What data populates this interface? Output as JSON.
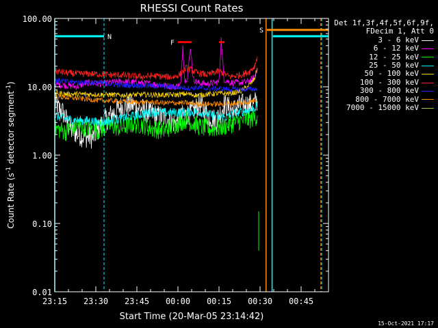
{
  "chart_data": {
    "type": "line",
    "title": "RHESSI Count Rates",
    "xlabel": "Start Time (20-Mar-05 23:14:42)",
    "ylabel_parts": [
      "Count Rate (s",
      "-1",
      " detector segment",
      "-1",
      ")"
    ],
    "yscale": "log",
    "ylim": [
      0.01,
      100
    ],
    "y_ticks": [
      {
        "value": 100,
        "label": "100.00"
      },
      {
        "value": 10,
        "label": "10.00"
      },
      {
        "value": 1,
        "label": "1.00"
      },
      {
        "value": 0.1,
        "label": "0.10"
      },
      {
        "value": 0.01,
        "label": "0.01"
      }
    ],
    "xlim_minutes": [
      0,
      100
    ],
    "x_ticks": [
      {
        "minute": 0,
        "label": "23:15"
      },
      {
        "minute": 15,
        "label": "23:30"
      },
      {
        "minute": 30,
        "label": "23:45"
      },
      {
        "minute": 45,
        "label": "00:00"
      },
      {
        "minute": 60,
        "label": "00:15"
      },
      {
        "minute": 75,
        "label": "00:30"
      },
      {
        "minute": 90,
        "label": "00:45"
      }
    ],
    "series": [
      {
        "name": "3 - 6 keV",
        "color": "#ffffff",
        "points": [
          [
            0,
            5.5
          ],
          [
            3,
            4.2
          ],
          [
            6,
            2.3
          ],
          [
            10,
            1.9
          ],
          [
            14,
            1.8
          ],
          [
            18,
            3.2
          ],
          [
            24,
            5
          ],
          [
            28,
            5.5
          ],
          [
            33,
            4.5
          ],
          [
            37,
            3.8
          ],
          [
            41,
            3.5
          ],
          [
            44,
            2.9
          ],
          [
            47,
            3.8
          ],
          [
            50,
            4.2
          ],
          [
            53,
            5.5
          ],
          [
            56,
            3.8
          ],
          [
            59,
            3.2
          ],
          [
            62,
            5.5
          ],
          [
            65,
            4.5
          ],
          [
            67,
            5.2
          ],
          [
            69,
            5.5
          ],
          [
            72,
            5.5
          ],
          [
            74,
            6.2
          ]
        ]
      },
      {
        "name": "6 - 12 keV",
        "color": "#ff00ff",
        "points": [
          [
            0,
            11
          ],
          [
            4,
            10.5
          ],
          [
            8,
            10
          ],
          [
            12,
            11.5
          ],
          [
            16,
            11
          ],
          [
            20,
            11.5
          ],
          [
            24,
            12
          ],
          [
            30,
            11.5
          ],
          [
            36,
            11
          ],
          [
            40,
            10.5
          ],
          [
            44,
            10
          ],
          [
            46,
            10.8
          ],
          [
            46.8,
            40
          ],
          [
            47.5,
            12
          ],
          [
            48.5,
            14
          ],
          [
            49.6,
            38
          ],
          [
            50.6,
            13
          ],
          [
            52,
            11.5
          ],
          [
            56,
            11
          ],
          [
            60,
            11.8
          ],
          [
            60.8,
            50
          ],
          [
            61.8,
            13
          ],
          [
            64,
            11.5
          ],
          [
            68,
            11.5
          ],
          [
            71,
            12
          ],
          [
            73,
            14
          ],
          [
            74,
            18
          ]
        ]
      },
      {
        "name": "12 - 25 keV",
        "color": "#00ff00",
        "points": [
          [
            0,
            2.5
          ],
          [
            4,
            2.2
          ],
          [
            8,
            2.7
          ],
          [
            12,
            2.5
          ],
          [
            16,
            2.3
          ],
          [
            20,
            2.7
          ],
          [
            24,
            2.5
          ],
          [
            28,
            2.8
          ],
          [
            32,
            2.8
          ],
          [
            36,
            2.4
          ],
          [
            40,
            2.3
          ],
          [
            44,
            2.8
          ],
          [
            48,
            3.3
          ],
          [
            52,
            2.7
          ],
          [
            56,
            2.4
          ],
          [
            60,
            2.5
          ],
          [
            64,
            2.8
          ],
          [
            68,
            3.2
          ],
          [
            71,
            3.3
          ],
          [
            73,
            3.5
          ],
          [
            74,
            3.8
          ]
        ]
      },
      {
        "name": "25 - 50 keV",
        "color": "#00ffff",
        "points": [
          [
            0,
            3.8
          ],
          [
            4,
            3.4
          ],
          [
            8,
            3.2
          ],
          [
            12,
            3.2
          ],
          [
            16,
            3.0
          ],
          [
            20,
            3.2
          ],
          [
            24,
            3.4
          ],
          [
            28,
            3.7
          ],
          [
            32,
            4.0
          ],
          [
            36,
            4.3
          ],
          [
            40,
            4.2
          ],
          [
            44,
            4.2
          ],
          [
            48,
            4.3
          ],
          [
            52,
            4.3
          ],
          [
            56,
            4.0
          ],
          [
            60,
            3.6
          ],
          [
            63,
            3.6
          ],
          [
            66,
            4.1
          ],
          [
            69,
            4.4
          ],
          [
            72,
            4.6
          ],
          [
            74,
            5.2
          ]
        ]
      },
      {
        "name": "50 - 100 keV",
        "color": "#ffd700",
        "points": [
          [
            0,
            8.2
          ],
          [
            4,
            7.8
          ],
          [
            8,
            7.8
          ],
          [
            12,
            7.8
          ],
          [
            16,
            7.7
          ],
          [
            20,
            7.7
          ],
          [
            24,
            7.5
          ],
          [
            28,
            7.6
          ],
          [
            32,
            7.7
          ],
          [
            36,
            7.6
          ],
          [
            40,
            7.6
          ],
          [
            44,
            7.6
          ],
          [
            48,
            7.9
          ],
          [
            52,
            7.5
          ],
          [
            56,
            7.8
          ],
          [
            60,
            8.0
          ],
          [
            64,
            8.0
          ],
          [
            68,
            8.6
          ],
          [
            71,
            10.5
          ],
          [
            73,
            13
          ],
          [
            74,
            19
          ]
        ]
      },
      {
        "name": "100 - 300 keV",
        "color": "#ff2020",
        "points": [
          [
            0,
            17
          ],
          [
            4,
            16
          ],
          [
            8,
            15.5
          ],
          [
            12,
            15.5
          ],
          [
            16,
            15.3
          ],
          [
            20,
            15
          ],
          [
            24,
            14.8
          ],
          [
            28,
            14.4
          ],
          [
            32,
            14
          ],
          [
            36,
            14.5
          ],
          [
            40,
            14
          ],
          [
            44,
            14
          ],
          [
            46,
            15.5
          ],
          [
            48,
            19
          ],
          [
            52,
            16
          ],
          [
            56,
            15
          ],
          [
            60,
            17
          ],
          [
            64,
            14
          ],
          [
            68,
            15
          ],
          [
            71,
            16.5
          ],
          [
            73,
            20
          ],
          [
            74,
            28
          ]
        ]
      },
      {
        "name": "300 - 800 keV",
        "color": "#2020ff",
        "points": [
          [
            0,
            12.5
          ],
          [
            4,
            12
          ],
          [
            8,
            11.7
          ],
          [
            12,
            11.6
          ],
          [
            16,
            11.5
          ],
          [
            20,
            11
          ],
          [
            24,
            10.6
          ],
          [
            28,
            10.5
          ],
          [
            32,
            10.4
          ],
          [
            36,
            10.3
          ],
          [
            40,
            10.2
          ],
          [
            44,
            9.9
          ],
          [
            48,
            9.6
          ],
          [
            52,
            9.7
          ],
          [
            56,
            9.4
          ],
          [
            60,
            9.4
          ],
          [
            64,
            9.2
          ],
          [
            68,
            9.2
          ],
          [
            71,
            9.2
          ],
          [
            74,
            9.2
          ]
        ]
      },
      {
        "name": "800 - 7000 keV",
        "color": "#ff8c00",
        "points": [
          [
            0,
            7.2
          ],
          [
            4,
            7.0
          ],
          [
            8,
            6.8
          ],
          [
            12,
            6.6
          ],
          [
            16,
            6.3
          ],
          [
            20,
            6.3
          ],
          [
            24,
            6.1
          ],
          [
            28,
            6.0
          ],
          [
            32,
            5.9
          ],
          [
            36,
            5.9
          ],
          [
            40,
            5.8
          ],
          [
            44,
            5.8
          ],
          [
            48,
            5.8
          ],
          [
            52,
            5.6
          ],
          [
            56,
            5.6
          ],
          [
            60,
            5.6
          ],
          [
            64,
            5.6
          ],
          [
            68,
            5.8
          ],
          [
            71,
            6.0
          ],
          [
            74,
            6.5
          ]
        ]
      },
      {
        "name": "7000 - 15000 keV",
        "color": "#9acd32",
        "points": []
      }
    ],
    "legend_header": [
      "Det 1f,3f,4f,5f,6f,9f,",
      "FDecim 1, Att 0"
    ],
    "markers": [
      {
        "label": "N",
        "color": "#00ffff",
        "minute_start": 0,
        "minute_end": 18,
        "value": 55
      },
      {
        "label": "F",
        "color": "#ff0000",
        "minute_start": 45,
        "minute_end": 50,
        "value": 45
      },
      {
        "label": "",
        "color": "#ff0000",
        "minute_start": 60,
        "minute_end": 62,
        "value": 45
      },
      {
        "label": "S",
        "color": "#ff8c00",
        "minute_start": 77.5,
        "minute_end": 100,
        "value": 68
      },
      {
        "label": "",
        "color": "#00ffff",
        "minute_start": 79.7,
        "minute_end": 100,
        "value": 55
      }
    ],
    "vlines": [
      {
        "minute": 0,
        "color": "#00ffff",
        "dashed": false
      },
      {
        "minute": 18,
        "color": "#00ffff",
        "dashed": true
      },
      {
        "minute": 77.2,
        "color": "#ff8c00",
        "dashed": false
      },
      {
        "minute": 79.4,
        "color": "#00ffff",
        "dashed": false
      },
      {
        "minute": 97.2,
        "color": "#ff8c00",
        "dashed": true
      },
      {
        "minute": 97.5,
        "color": "#00ffff",
        "dashed": true
      }
    ],
    "green_drop": {
      "minute": 74.5,
      "from": 0.15,
      "to": 0.04
    }
  },
  "footer": "15-Oct-2021 17:17"
}
